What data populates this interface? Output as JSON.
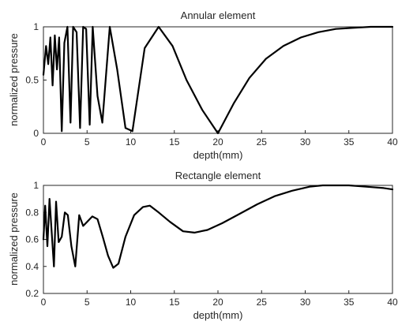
{
  "chart_data": [
    {
      "type": "line",
      "title": "Annular element",
      "xlabel": "depth(mm)",
      "ylabel": "normalized pressure",
      "xlim": [
        0,
        40
      ],
      "ylim": [
        0,
        1
      ],
      "xticks": [
        0,
        5,
        10,
        15,
        20,
        25,
        30,
        35,
        40
      ],
      "yticks": [
        0,
        0.5,
        1
      ],
      "grid": false,
      "color": "#000000",
      "series": [
        {
          "x": [
            0,
            0.3,
            0.55,
            0.8,
            1.05,
            1.3,
            1.55,
            1.8,
            2.1,
            2.4,
            2.75,
            3.1,
            3.4,
            3.8,
            4.2,
            4.55,
            4.9,
            5.3,
            5.65,
            6.2,
            6.75,
            7.6,
            8.45,
            9.4,
            10.2,
            11.6,
            13.2,
            14.8,
            16.4,
            18.2,
            20.0,
            21.8,
            23.6,
            25.5,
            27.5,
            29.5,
            31.5,
            33.5,
            35.5,
            37.5,
            39.0,
            40.0
          ],
          "y": [
            0.55,
            0.82,
            0.65,
            0.9,
            0.45,
            0.92,
            0.6,
            0.9,
            0.02,
            0.85,
            1.0,
            0.1,
            1.0,
            0.95,
            0.05,
            1.0,
            0.98,
            0.08,
            1.0,
            0.35,
            0.1,
            1.0,
            0.6,
            0.05,
            0.02,
            0.8,
            1.0,
            0.82,
            0.5,
            0.22,
            0.0,
            0.28,
            0.52,
            0.7,
            0.82,
            0.9,
            0.95,
            0.98,
            0.99,
            1.0,
            1.0,
            1.0
          ]
        }
      ]
    },
    {
      "type": "line",
      "title": "Rectangle element",
      "xlabel": "depth(mm)",
      "ylabel": "normalized pressure",
      "xlim": [
        0,
        40
      ],
      "ylim": [
        0.2,
        1
      ],
      "xticks": [
        0,
        5,
        10,
        15,
        20,
        25,
        30,
        35,
        40
      ],
      "yticks": [
        0.2,
        0.4,
        0.6,
        0.8,
        1
      ],
      "grid": false,
      "color": "#000000",
      "series": [
        {
          "x": [
            0,
            0.2,
            0.45,
            0.7,
            0.95,
            1.2,
            1.45,
            1.75,
            2.1,
            2.45,
            2.8,
            3.2,
            3.65,
            4.1,
            4.55,
            5.0,
            5.6,
            6.2,
            6.8,
            7.4,
            8.0,
            8.6,
            9.4,
            10.4,
            11.4,
            12.2,
            13.2,
            14.5,
            16.0,
            17.3,
            18.8,
            20.5,
            22.5,
            24.5,
            26.5,
            28.5,
            30.5,
            32.0,
            33.5,
            35.0,
            37.0,
            39.0,
            40.0
          ],
          "y": [
            0.6,
            0.85,
            0.55,
            0.9,
            0.65,
            0.4,
            0.88,
            0.58,
            0.62,
            0.8,
            0.78,
            0.55,
            0.4,
            0.78,
            0.7,
            0.73,
            0.77,
            0.75,
            0.62,
            0.48,
            0.39,
            0.42,
            0.62,
            0.78,
            0.84,
            0.85,
            0.8,
            0.73,
            0.66,
            0.65,
            0.67,
            0.72,
            0.79,
            0.86,
            0.92,
            0.96,
            0.99,
            1.0,
            1.0,
            1.0,
            0.99,
            0.98,
            0.97
          ]
        }
      ]
    }
  ]
}
